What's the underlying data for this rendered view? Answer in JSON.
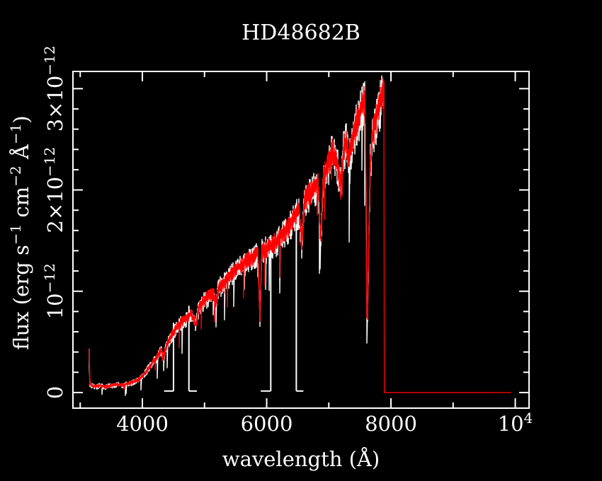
{
  "title": "HD48682B",
  "chart_data": {
    "type": "line",
    "title": "HD48682B",
    "xlabel": "wavelength (Å)",
    "ylabel": "flux (erg s⁻¹ cm⁻² Å⁻¹)",
    "ylabel_segments": [
      {
        "t": "flux (erg s"
      },
      {
        "sup": "−1"
      },
      {
        "t": " cm"
      },
      {
        "sup": "−2"
      },
      {
        "t": " Å"
      },
      {
        "sup": "−1"
      },
      {
        "t": ")"
      }
    ],
    "x_range": [
      2883,
      10222
    ],
    "y_range": [
      -0.154,
      3.17
    ],
    "y_unit": "10^-12 erg s^-1 cm^-2 A^-1",
    "grid": false,
    "legend": "none",
    "x_axis": {
      "major": [
        4000,
        6000,
        8000,
        10000
      ],
      "minor": [
        3000,
        5000,
        7000,
        9000
      ],
      "labels": [
        {
          "v": 4000,
          "text": "4000"
        },
        {
          "v": 6000,
          "text": "6000"
        },
        {
          "v": 8000,
          "text": "8000"
        },
        {
          "v": 10000,
          "base": "10",
          "exp": "4"
        }
      ],
      "tick_labels_plain": [
        "4000",
        "6000",
        "8000",
        "10^4"
      ]
    },
    "y_axis": {
      "major": [
        0,
        1,
        2,
        3
      ],
      "minor": [
        0.2,
        0.4,
        0.6,
        0.8,
        1.2,
        1.4,
        1.6,
        1.8,
        2.2,
        2.4,
        2.6,
        2.8
      ],
      "labels": [
        {
          "v": 0,
          "pre": "0"
        },
        {
          "v": 1,
          "pre": "10",
          "exp": "−12"
        },
        {
          "v": 2,
          "pre": "2×10",
          "exp": "−12"
        },
        {
          "v": 3,
          "pre": "3×10",
          "exp": "−12"
        }
      ],
      "tick_labels_plain": [
        "0",
        "10^-12",
        "2x10^-12",
        "3x10^-12"
      ]
    },
    "spectrum": {
      "start": 3145,
      "end": 7894,
      "flat_tail": {
        "from": 7894,
        "to": 9934,
        "flux": 0.0
      }
    },
    "envelope_1e12": [
      [
        3145,
        0.42
      ],
      [
        3149,
        0.22
      ],
      [
        3155,
        0.09
      ],
      [
        3230,
        0.06
      ],
      [
        3320,
        0.075
      ],
      [
        3400,
        0.06
      ],
      [
        3500,
        0.075
      ],
      [
        3600,
        0.085
      ],
      [
        3700,
        0.08
      ],
      [
        3800,
        0.1
      ],
      [
        3900,
        0.12
      ],
      [
        3960,
        0.14
      ],
      [
        4030,
        0.19
      ],
      [
        4100,
        0.25
      ],
      [
        4170,
        0.31
      ],
      [
        4240,
        0.37
      ],
      [
        4300,
        0.43
      ],
      [
        4340,
        0.36
      ],
      [
        4390,
        0.48
      ],
      [
        4450,
        0.55
      ],
      [
        4510,
        0.62
      ],
      [
        4580,
        0.68
      ],
      [
        4650,
        0.72
      ],
      [
        4720,
        0.76
      ],
      [
        4790,
        0.8
      ],
      [
        4861,
        0.68
      ],
      [
        4910,
        0.86
      ],
      [
        4980,
        0.92
      ],
      [
        5060,
        0.97
      ],
      [
        5140,
        1.01
      ],
      [
        5180,
        0.88
      ],
      [
        5220,
        1.05
      ],
      [
        5300,
        1.1
      ],
      [
        5380,
        1.15
      ],
      [
        5460,
        1.21
      ],
      [
        5540,
        1.25
      ],
      [
        5620,
        1.29
      ],
      [
        5700,
        1.33
      ],
      [
        5780,
        1.36
      ],
      [
        5860,
        1.4
      ],
      [
        5893,
        0.7
      ],
      [
        5920,
        1.42
      ],
      [
        6000,
        1.45
      ],
      [
        6080,
        1.48
      ],
      [
        6160,
        1.52
      ],
      [
        6240,
        1.58
      ],
      [
        6320,
        1.64
      ],
      [
        6400,
        1.71
      ],
      [
        6460,
        1.78
      ],
      [
        6520,
        1.82
      ],
      [
        6563,
        1.5
      ],
      [
        6610,
        1.92
      ],
      [
        6690,
        2.0
      ],
      [
        6770,
        2.06
      ],
      [
        6830,
        2.1
      ],
      [
        6867,
        1.5
      ],
      [
        6910,
        2.15
      ],
      [
        6990,
        2.28
      ],
      [
        7060,
        2.42
      ],
      [
        7110,
        2.33
      ],
      [
        7160,
        2.22
      ],
      [
        7190,
        2.06
      ],
      [
        7240,
        2.46
      ],
      [
        7280,
        2.52
      ],
      [
        7320,
        2.35
      ],
      [
        7380,
        2.52
      ],
      [
        7440,
        2.68
      ],
      [
        7500,
        2.8
      ],
      [
        7550,
        2.89
      ],
      [
        7580,
        2.94
      ],
      [
        7598,
        2.2
      ],
      [
        7610,
        0.78
      ],
      [
        7622,
        0.68
      ],
      [
        7645,
        1.6
      ],
      [
        7668,
        2.3
      ],
      [
        7700,
        2.55
      ],
      [
        7740,
        2.7
      ],
      [
        7790,
        2.82
      ],
      [
        7840,
        2.93
      ],
      [
        7894,
        3.04
      ]
    ],
    "absorption_features_angstrom": [
      4340,
      4861,
      5180,
      5893,
      6563,
      6867,
      7190,
      7616
    ],
    "series": [
      {
        "name": "underlying-spectrum",
        "color": "#ffffff",
        "seed": 47,
        "amp": 1.45,
        "floor": -0.06
      },
      {
        "name": "flux-calibrated-spectrum",
        "color": "#ff0000",
        "seed": 13,
        "amp": 1.0,
        "floor": -0.02
      }
    ],
    "white_gaps": [
      {
        "x": 4501,
        "foot": [
          4350,
          4501
        ]
      },
      {
        "x": 4749,
        "foot": [
          4749,
          4877
        ]
      },
      {
        "x": 6066,
        "foot": [
          5905,
          6066
        ]
      },
      {
        "x": 6477,
        "foot": [
          6477,
          6591
        ]
      }
    ],
    "colors": {
      "background": "#000000",
      "axes": "#ffffff",
      "spectrum": "#ff0000",
      "under_spectrum": "#ffffff"
    }
  }
}
